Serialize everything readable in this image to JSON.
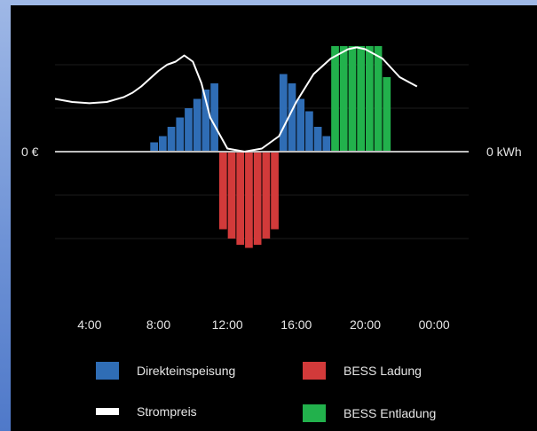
{
  "chart_data": {
    "type": "bar",
    "left_axis_label": "0 €",
    "right_axis_label": "0 kWh",
    "x_ticks": [
      "4:00",
      "8:00",
      "12:00",
      "16:00",
      "20:00",
      "00:00"
    ],
    "tick_hours": [
      4,
      8,
      12,
      16,
      20,
      24
    ],
    "series": [
      {
        "name": "Direkteinspeisung",
        "color": "#2f6db5",
        "hours": [
          7.75,
          8.25,
          8.75,
          9.25,
          9.75,
          10.25,
          10.75,
          11.25,
          15.25,
          15.75,
          16.25,
          16.75,
          17.25,
          17.75
        ],
        "values": [
          0.15,
          0.25,
          0.4,
          0.55,
          0.7,
          0.85,
          1.0,
          1.1,
          1.25,
          1.1,
          0.85,
          0.65,
          0.4,
          0.25
        ]
      },
      {
        "name": "BESS Ladung",
        "color": "#d23a3a",
        "hours": [
          11.75,
          12.25,
          12.75,
          13.25,
          13.75,
          14.25,
          14.75
        ],
        "values": [
          -1.25,
          -1.4,
          -1.5,
          -1.55,
          -1.5,
          -1.4,
          -1.25
        ]
      },
      {
        "name": "BESS Entladung",
        "color": "#22b14c",
        "hours": [
          18.25,
          18.75,
          19.25,
          19.75,
          20.25,
          20.75,
          21.25
        ],
        "values": [
          1.7,
          1.7,
          1.7,
          1.7,
          1.7,
          1.7,
          1.2
        ]
      }
    ],
    "price": {
      "name": "Strompreis",
      "color": "#ffffff",
      "hours": [
        2,
        3,
        4,
        5,
        6,
        6.5,
        7,
        8,
        8.5,
        9,
        9.5,
        10,
        10.5,
        11,
        12,
        13,
        14,
        15,
        16,
        17,
        18,
        19,
        19.5,
        20,
        21,
        22,
        23
      ],
      "values": [
        0.85,
        0.8,
        0.78,
        0.8,
        0.88,
        0.95,
        1.05,
        1.3,
        1.4,
        1.45,
        1.55,
        1.45,
        1.1,
        0.55,
        0.05,
        0.0,
        0.05,
        0.25,
        0.8,
        1.25,
        1.5,
        1.65,
        1.68,
        1.65,
        1.5,
        1.2,
        1.05
      ]
    },
    "ylim": [
      -2,
      2
    ],
    "xlim": [
      2,
      26
    ],
    "grid": true,
    "legend_position": "bottom"
  },
  "legend": {
    "direkt": "Direkteinspeisung",
    "ladung": "BESS Ladung",
    "strompreis": "Strompreis",
    "entladung": "BESS Entladung"
  }
}
